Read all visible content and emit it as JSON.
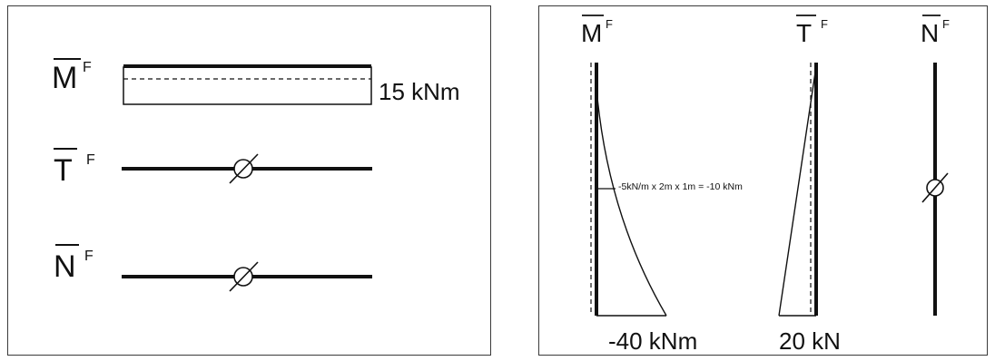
{
  "left_panel": {
    "labels": {
      "moment": "M",
      "shear": "T",
      "normal": "N",
      "superscript": "F"
    },
    "moment_value": "15 kNm"
  },
  "right_panel": {
    "labels": {
      "moment": "M",
      "shear": "T",
      "normal": "N",
      "superscript": "F"
    },
    "moment_annotation": "-5kN/m x 2m x 1m = -10 kNm",
    "moment_base_value": "-40 kNm",
    "shear_base_value": "20 kN"
  },
  "colors": {
    "line": "#111111",
    "frame": "#3a3a3a"
  }
}
